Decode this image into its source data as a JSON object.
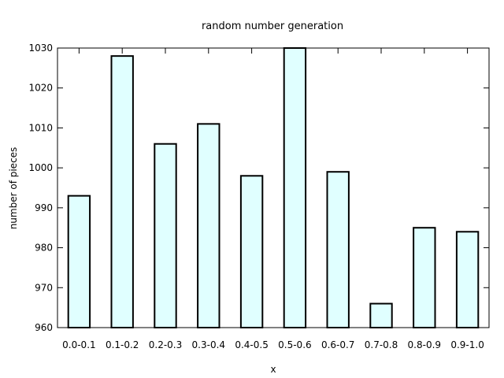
{
  "chart_data": {
    "type": "bar",
    "title": "random number generation",
    "xlabel": "x",
    "ylabel": "number of pieces",
    "categories": [
      "0.0-0.1",
      "0.1-0.2",
      "0.2-0.3",
      "0.3-0.4",
      "0.4-0.5",
      "0.5-0.6",
      "0.6-0.7",
      "0.7-0.8",
      "0.8-0.9",
      "0.9-1.0"
    ],
    "values": [
      993,
      1028,
      1006,
      1011,
      998,
      1030,
      999,
      966,
      985,
      984
    ],
    "ylim": [
      960,
      1030
    ],
    "yticks": [
      960,
      970,
      980,
      990,
      1000,
      1010,
      1020,
      1030
    ],
    "grid": false,
    "bar_fill": "#e0ffff",
    "bar_stroke": "#000000"
  }
}
